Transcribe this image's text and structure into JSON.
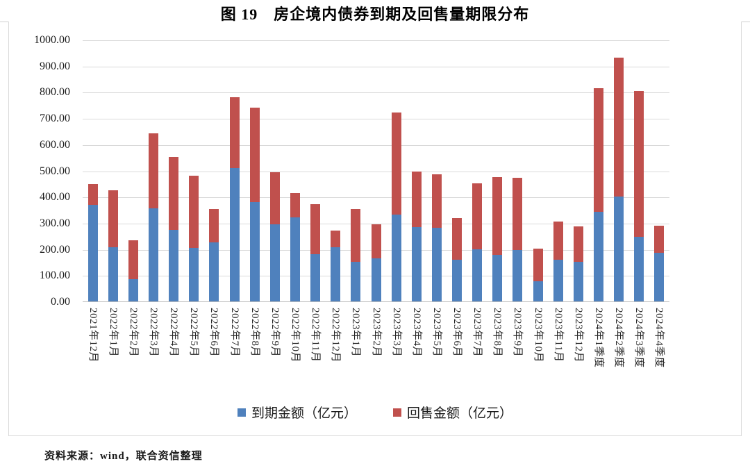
{
  "figure": {
    "title": "图 19　房企境内债券到期及回售量期限分布",
    "source": "资料来源：wind，联合资信整理"
  },
  "chart_data": {
    "type": "bar",
    "stacked": true,
    "title": "图 19　房企境内债券到期及回售量期限分布",
    "xlabel": "",
    "ylabel": "",
    "ylim": [
      0,
      1000
    ],
    "ytick_step": 100,
    "ytick_format": "two-decimals",
    "grid": true,
    "legend_position": "bottom",
    "categories": [
      "2021年12月",
      "2022年1月",
      "2022年2月",
      "2022年3月",
      "2022年4月",
      "2022年5月",
      "2022年6月",
      "2022年7月",
      "2022年8月",
      "2022年9月",
      "2022年10月",
      "2022年11月",
      "2022年12月",
      "2023年1月",
      "2023年2月",
      "2023年3月",
      "2023年4月",
      "2023年5月",
      "2023年6月",
      "2023年7月",
      "2023年8月",
      "2023年9月",
      "2023年10月",
      "2023年11月",
      "2023年12月",
      "2024年1季度",
      "2024年2季度",
      "2024年3季度",
      "2024年4季度"
    ],
    "series": [
      {
        "name": "到期金额（亿元）",
        "color": "#4F81BD",
        "values": [
          370,
          207,
          86,
          355,
          274,
          205,
          225,
          510,
          378,
          295,
          320,
          180,
          207,
          150,
          165,
          332,
          285,
          280,
          160,
          200,
          178,
          195,
          78,
          158,
          152,
          343,
          400,
          247,
          185
        ]
      },
      {
        "name": "回售金额（亿元）",
        "color": "#C0504D",
        "values": [
          80,
          218,
          149,
          287,
          278,
          275,
          127,
          270,
          362,
          198,
          92,
          190,
          63,
          202,
          130,
          391,
          213,
          203,
          160,
          252,
          297,
          277,
          125,
          145,
          136,
          472,
          530,
          558,
          103
        ]
      }
    ]
  }
}
